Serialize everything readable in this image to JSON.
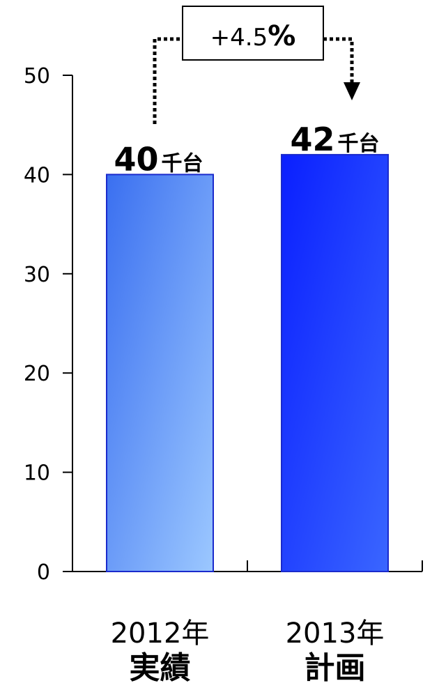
{
  "chart_data": {
    "type": "bar",
    "categories": [
      {
        "year": "2012年",
        "label": "実績"
      },
      {
        "year": "2013年",
        "label": "計画"
      }
    ],
    "values": [
      40,
      42
    ],
    "value_labels": [
      {
        "number": "40",
        "unit": "千台"
      },
      {
        "number": "42",
        "unit": "千台"
      }
    ],
    "ylim": [
      0,
      50
    ],
    "y_ticks": [
      0,
      10,
      20,
      30,
      40,
      50
    ],
    "grid": false,
    "annotation": {
      "prefix": "+4.5",
      "percent": "%"
    },
    "colors": {
      "bar1_start": "#3a6ff0",
      "bar1_end": "#9cc8ff",
      "bar2_start": "#0a1fff",
      "bar2_end": "#3a66ff",
      "bar_border": "#1a2acc",
      "axis": "#000000",
      "text": "#000000"
    }
  }
}
